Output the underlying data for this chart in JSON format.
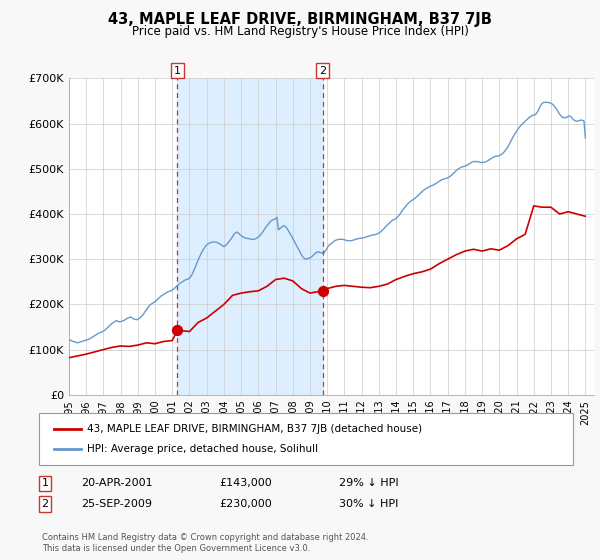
{
  "title": "43, MAPLE LEAF DRIVE, BIRMINGHAM, B37 7JB",
  "subtitle": "Price paid vs. HM Land Registry's House Price Index (HPI)",
  "background_color": "#f8f8f8",
  "plot_bg_color": "#ffffff",
  "ylim": [
    0,
    700000
  ],
  "yticks": [
    0,
    100000,
    200000,
    300000,
    400000,
    500000,
    600000,
    700000
  ],
  "ytick_labels": [
    "£0",
    "£100K",
    "£200K",
    "£300K",
    "£400K",
    "£500K",
    "£600K",
    "£700K"
  ],
  "red_line_color": "#cc0000",
  "blue_line_color": "#6699cc",
  "marker_color": "#cc0000",
  "shaded_region_color": "#ddeeff",
  "dashed_line_color": "#cc3333",
  "sale1_date": 2001.3,
  "sale1_price": 143000,
  "sale2_date": 2009.73,
  "sale2_price": 230000,
  "legend_entries": [
    "43, MAPLE LEAF DRIVE, BIRMINGHAM, B37 7JB (detached house)",
    "HPI: Average price, detached house, Solihull"
  ],
  "annotation1_date": "20-APR-2001",
  "annotation1_price": "£143,000",
  "annotation1_pct": "29% ↓ HPI",
  "annotation2_date": "25-SEP-2009",
  "annotation2_price": "£230,000",
  "annotation2_pct": "30% ↓ HPI",
  "footnote": "Contains HM Land Registry data © Crown copyright and database right 2024.\nThis data is licensed under the Open Government Licence v3.0.",
  "hpi_years": [
    1995.0,
    1995.083,
    1995.167,
    1995.25,
    1995.333,
    1995.417,
    1995.5,
    1995.583,
    1995.667,
    1995.75,
    1995.833,
    1995.917,
    1996.0,
    1996.083,
    1996.167,
    1996.25,
    1996.333,
    1996.417,
    1996.5,
    1996.583,
    1996.667,
    1996.75,
    1996.833,
    1996.917,
    1997.0,
    1997.083,
    1997.167,
    1997.25,
    1997.333,
    1997.417,
    1997.5,
    1997.583,
    1997.667,
    1997.75,
    1997.833,
    1997.917,
    1998.0,
    1998.083,
    1998.167,
    1998.25,
    1998.333,
    1998.417,
    1998.5,
    1998.583,
    1998.667,
    1998.75,
    1998.833,
    1998.917,
    1999.0,
    1999.083,
    1999.167,
    1999.25,
    1999.333,
    1999.417,
    1999.5,
    1999.583,
    1999.667,
    1999.75,
    1999.833,
    1999.917,
    2000.0,
    2000.083,
    2000.167,
    2000.25,
    2000.333,
    2000.417,
    2000.5,
    2000.583,
    2000.667,
    2000.75,
    2000.833,
    2000.917,
    2001.0,
    2001.083,
    2001.167,
    2001.25,
    2001.333,
    2001.417,
    2001.5,
    2001.583,
    2001.667,
    2001.75,
    2001.833,
    2001.917,
    2002.0,
    2002.083,
    2002.167,
    2002.25,
    2002.333,
    2002.417,
    2002.5,
    2002.583,
    2002.667,
    2002.75,
    2002.833,
    2002.917,
    2003.0,
    2003.083,
    2003.167,
    2003.25,
    2003.333,
    2003.417,
    2003.5,
    2003.583,
    2003.667,
    2003.75,
    2003.833,
    2003.917,
    2004.0,
    2004.083,
    2004.167,
    2004.25,
    2004.333,
    2004.417,
    2004.5,
    2004.583,
    2004.667,
    2004.75,
    2004.833,
    2004.917,
    2005.0,
    2005.083,
    2005.167,
    2005.25,
    2005.333,
    2005.417,
    2005.5,
    2005.583,
    2005.667,
    2005.75,
    2005.833,
    2005.917,
    2006.0,
    2006.083,
    2006.167,
    2006.25,
    2006.333,
    2006.417,
    2006.5,
    2006.583,
    2006.667,
    2006.75,
    2006.833,
    2006.917,
    2007.0,
    2007.083,
    2007.167,
    2007.25,
    2007.333,
    2007.417,
    2007.5,
    2007.583,
    2007.667,
    2007.75,
    2007.833,
    2007.917,
    2008.0,
    2008.083,
    2008.167,
    2008.25,
    2008.333,
    2008.417,
    2008.5,
    2008.583,
    2008.667,
    2008.75,
    2008.833,
    2008.917,
    2009.0,
    2009.083,
    2009.167,
    2009.25,
    2009.333,
    2009.417,
    2009.5,
    2009.583,
    2009.667,
    2009.75,
    2009.833,
    2009.917,
    2010.0,
    2010.083,
    2010.167,
    2010.25,
    2010.333,
    2010.417,
    2010.5,
    2010.583,
    2010.667,
    2010.75,
    2010.833,
    2010.917,
    2011.0,
    2011.083,
    2011.167,
    2011.25,
    2011.333,
    2011.417,
    2011.5,
    2011.583,
    2011.667,
    2011.75,
    2011.833,
    2011.917,
    2012.0,
    2012.083,
    2012.167,
    2012.25,
    2012.333,
    2012.417,
    2012.5,
    2012.583,
    2012.667,
    2012.75,
    2012.833,
    2012.917,
    2013.0,
    2013.083,
    2013.167,
    2013.25,
    2013.333,
    2013.417,
    2013.5,
    2013.583,
    2013.667,
    2013.75,
    2013.833,
    2013.917,
    2014.0,
    2014.083,
    2014.167,
    2014.25,
    2014.333,
    2014.417,
    2014.5,
    2014.583,
    2014.667,
    2014.75,
    2014.833,
    2014.917,
    2015.0,
    2015.083,
    2015.167,
    2015.25,
    2015.333,
    2015.417,
    2015.5,
    2015.583,
    2015.667,
    2015.75,
    2015.833,
    2015.917,
    2016.0,
    2016.083,
    2016.167,
    2016.25,
    2016.333,
    2016.417,
    2016.5,
    2016.583,
    2016.667,
    2016.75,
    2016.833,
    2016.917,
    2017.0,
    2017.083,
    2017.167,
    2017.25,
    2017.333,
    2017.417,
    2017.5,
    2017.583,
    2017.667,
    2017.75,
    2017.833,
    2017.917,
    2018.0,
    2018.083,
    2018.167,
    2018.25,
    2018.333,
    2018.417,
    2018.5,
    2018.583,
    2018.667,
    2018.75,
    2018.833,
    2018.917,
    2019.0,
    2019.083,
    2019.167,
    2019.25,
    2019.333,
    2019.417,
    2019.5,
    2019.583,
    2019.667,
    2019.75,
    2019.833,
    2019.917,
    2020.0,
    2020.083,
    2020.167,
    2020.25,
    2020.333,
    2020.417,
    2020.5,
    2020.583,
    2020.667,
    2020.75,
    2020.833,
    2020.917,
    2021.0,
    2021.083,
    2021.167,
    2021.25,
    2021.333,
    2021.417,
    2021.5,
    2021.583,
    2021.667,
    2021.75,
    2021.833,
    2021.917,
    2022.0,
    2022.083,
    2022.167,
    2022.25,
    2022.333,
    2022.417,
    2022.5,
    2022.583,
    2022.667,
    2022.75,
    2022.833,
    2022.917,
    2023.0,
    2023.083,
    2023.167,
    2023.25,
    2023.333,
    2023.417,
    2023.5,
    2023.583,
    2023.667,
    2023.75,
    2023.833,
    2023.917,
    2024.0,
    2024.083,
    2024.167,
    2024.25,
    2024.333,
    2024.417,
    2024.5,
    2024.583,
    2024.667,
    2024.75,
    2024.833,
    2024.917,
    2025.0
  ],
  "hpi_values": [
    120000,
    121000,
    119000,
    118000,
    117000,
    116000,
    115000,
    116000,
    117000,
    118000,
    119000,
    120000,
    121000,
    122000,
    123000,
    125000,
    127000,
    129000,
    131000,
    133000,
    135000,
    137000,
    138000,
    139000,
    141000,
    143000,
    146000,
    149000,
    152000,
    155000,
    158000,
    160000,
    162000,
    164000,
    163000,
    161000,
    162000,
    163000,
    164000,
    166000,
    168000,
    170000,
    171000,
    172000,
    170000,
    168000,
    167000,
    166000,
    167000,
    169000,
    172000,
    175000,
    179000,
    184000,
    188000,
    193000,
    197000,
    200000,
    202000,
    204000,
    206000,
    209000,
    212000,
    215000,
    218000,
    220000,
    222000,
    224000,
    226000,
    228000,
    229000,
    230000,
    232000,
    234000,
    237000,
    240000,
    243000,
    246000,
    248000,
    250000,
    252000,
    254000,
    255000,
    256000,
    258000,
    262000,
    268000,
    275000,
    282000,
    290000,
    298000,
    305000,
    312000,
    318000,
    323000,
    328000,
    332000,
    334000,
    336000,
    337000,
    338000,
    338000,
    338000,
    337000,
    336000,
    334000,
    332000,
    330000,
    328000,
    330000,
    333000,
    337000,
    341000,
    345000,
    350000,
    355000,
    358000,
    360000,
    358000,
    355000,
    352000,
    350000,
    348000,
    347000,
    346000,
    346000,
    345000,
    344000,
    344000,
    344000,
    345000,
    347000,
    349000,
    352000,
    356000,
    360000,
    365000,
    370000,
    374000,
    378000,
    382000,
    385000,
    387000,
    388000,
    390000,
    393000,
    365000,
    368000,
    370000,
    373000,
    374000,
    372000,
    368000,
    363000,
    357000,
    352000,
    346000,
    340000,
    334000,
    328000,
    322000,
    316000,
    310000,
    305000,
    302000,
    300000,
    301000,
    302000,
    303000,
    305000,
    308000,
    311000,
    314000,
    316000,
    316000,
    315000,
    314000,
    313000,
    315000,
    320000,
    325000,
    330000,
    333000,
    335000,
    338000,
    340000,
    342000,
    343000,
    344000,
    344000,
    344000,
    344000,
    343000,
    342000,
    341000,
    341000,
    341000,
    341000,
    342000,
    343000,
    344000,
    345000,
    346000,
    346000,
    347000,
    347000,
    348000,
    349000,
    350000,
    351000,
    352000,
    353000,
    354000,
    354000,
    355000,
    356000,
    358000,
    360000,
    363000,
    366000,
    369000,
    373000,
    376000,
    379000,
    382000,
    385000,
    387000,
    388000,
    390000,
    393000,
    397000,
    401000,
    406000,
    410000,
    414000,
    418000,
    422000,
    425000,
    428000,
    430000,
    432000,
    434000,
    437000,
    440000,
    443000,
    446000,
    449000,
    452000,
    454000,
    456000,
    458000,
    460000,
    462000,
    463000,
    464000,
    466000,
    468000,
    470000,
    472000,
    474000,
    476000,
    477000,
    478000,
    479000,
    480000,
    482000,
    484000,
    487000,
    490000,
    493000,
    496000,
    499000,
    501000,
    503000,
    504000,
    505000,
    506000,
    507000,
    509000,
    511000,
    513000,
    515000,
    516000,
    516000,
    516000,
    516000,
    515000,
    514000,
    514000,
    514000,
    515000,
    516000,
    518000,
    520000,
    522000,
    524000,
    526000,
    527000,
    528000,
    528000,
    529000,
    531000,
    533000,
    536000,
    540000,
    544000,
    549000,
    555000,
    561000,
    567000,
    573000,
    578000,
    583000,
    588000,
    592000,
    596000,
    599000,
    602000,
    605000,
    608000,
    611000,
    614000,
    616000,
    618000,
    619000,
    620000,
    623000,
    628000,
    635000,
    641000,
    645000,
    647000,
    647000,
    647000,
    647000,
    646000,
    645000,
    643000,
    640000,
    636000,
    631000,
    626000,
    621000,
    617000,
    614000,
    613000,
    613000,
    614000,
    616000,
    617000,
    615000,
    611000,
    608000,
    606000,
    605000,
    606000,
    607000,
    608000,
    607000,
    606000,
    568000
  ],
  "pp_years": [
    1995.0,
    1995.5,
    1996.0,
    1996.5,
    1997.0,
    1997.5,
    1998.0,
    1998.5,
    1999.0,
    1999.5,
    2000.0,
    2000.5,
    2001.0,
    2001.3,
    2002.0,
    2002.5,
    2003.0,
    2003.5,
    2004.0,
    2004.5,
    2005.0,
    2005.5,
    2006.0,
    2006.5,
    2007.0,
    2007.5,
    2008.0,
    2008.5,
    2009.0,
    2009.73,
    2010.0,
    2010.5,
    2011.0,
    2011.5,
    2012.0,
    2012.5,
    2013.0,
    2013.5,
    2014.0,
    2014.5,
    2015.0,
    2015.5,
    2016.0,
    2016.5,
    2017.0,
    2017.5,
    2018.0,
    2018.5,
    2019.0,
    2019.5,
    2020.0,
    2020.5,
    2021.0,
    2021.5,
    2022.0,
    2022.5,
    2023.0,
    2023.5,
    2024.0,
    2024.5,
    2025.0
  ],
  "pp_values": [
    82000,
    86000,
    90000,
    95000,
    100000,
    105000,
    108000,
    107000,
    110000,
    115000,
    113000,
    118000,
    120000,
    143000,
    140000,
    160000,
    170000,
    185000,
    200000,
    220000,
    225000,
    228000,
    230000,
    240000,
    255000,
    258000,
    252000,
    235000,
    225000,
    230000,
    235000,
    240000,
    242000,
    240000,
    238000,
    237000,
    240000,
    245000,
    255000,
    262000,
    268000,
    272000,
    278000,
    290000,
    300000,
    310000,
    318000,
    322000,
    318000,
    323000,
    320000,
    330000,
    345000,
    355000,
    418000,
    415000,
    415000,
    400000,
    405000,
    400000,
    395000
  ]
}
